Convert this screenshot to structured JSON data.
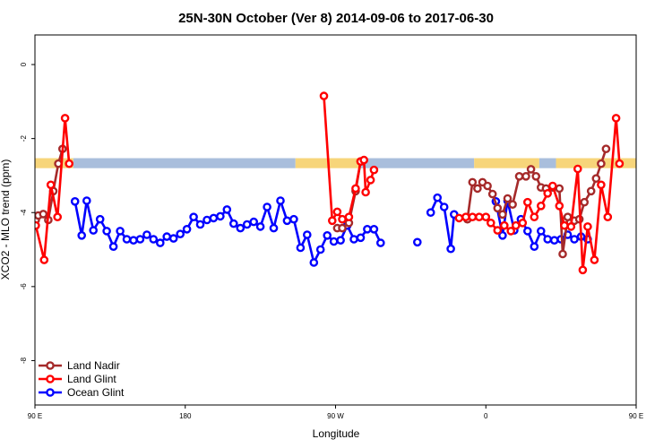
{
  "chart_data": {
    "type": "line",
    "title": "25N-30N October (Ver 8)   2014-09-06 to 2017-06-30",
    "xlabel": "Longitude",
    "ylabel": "XCO2 - MLO trend (ppm)",
    "xlim": [
      90,
      450
    ],
    "ylim": [
      -9.2,
      0.8
    ],
    "x_ticks": [
      {
        "value": 90,
        "label": "90 E"
      },
      {
        "value": 180,
        "label": "180"
      },
      {
        "value": 270,
        "label": "90 W"
      },
      {
        "value": 360,
        "label": "0"
      },
      {
        "value": 450,
        "label": "90 E"
      },
      {
        "value": 540,
        "label": "180"
      }
    ],
    "y_ticks": [
      {
        "value": 0,
        "label": "0"
      },
      {
        "value": -2,
        "label": "-2"
      },
      {
        "value": -4,
        "label": "-4"
      },
      {
        "value": -6,
        "label": "-6"
      },
      {
        "value": -8,
        "label": "-8"
      }
    ],
    "grid": false,
    "legend_position": "bottom-left",
    "band": {
      "y_top": -2.53,
      "y_bottom": -2.8,
      "land_color": "#f7d57a",
      "ocean_color": "#a9bedc",
      "segments": [
        {
          "x0": 90,
          "x1": 113,
          "kind": "land"
        },
        {
          "x0": 113,
          "x1": 246,
          "kind": "ocean"
        },
        {
          "x0": 246,
          "x1": 284,
          "kind": "land"
        },
        {
          "x0": 284,
          "x1": 353,
          "kind": "ocean"
        },
        {
          "x0": 353,
          "x1": 392,
          "kind": "land"
        },
        {
          "x0": 392,
          "x1": 402,
          "kind": "ocean"
        },
        {
          "x0": 402,
          "x1": 466,
          "kind": "land"
        },
        {
          "x0": 466,
          "x1": 630,
          "kind": "ocean"
        }
      ]
    },
    "series": [
      {
        "name": "Land Nadir",
        "color": "#a52a2a",
        "segments": [
          [
            [
              90.5,
              -4.2
            ],
            [
              92,
              -4.08
            ],
            [
              95,
              -4.04
            ],
            [
              98,
              -4.2
            ],
            [
              101,
              -3.42
            ],
            [
              104,
              -2.68
            ],
            [
              106.5,
              -2.28
            ]
          ],
          [
            [
              271,
              -4.42
            ],
            [
              274,
              -4.42
            ],
            [
              278,
              -4.28
            ],
            [
              282,
              -3.42
            ],
            [
              285,
              -2.62
            ]
          ],
          [
            [
              349,
              -4.18
            ],
            [
              352,
              -3.18
            ],
            [
              355,
              -3.35
            ],
            [
              358,
              -3.18
            ],
            [
              361,
              -3.28
            ],
            [
              364,
              -3.5
            ],
            [
              367,
              -3.88
            ],
            [
              370,
              -4.05
            ],
            [
              373,
              -3.62
            ],
            [
              376,
              -3.78
            ],
            [
              380,
              -3.02
            ],
            [
              384,
              -3.02
            ],
            [
              387,
              -2.83
            ],
            [
              390,
              -3.02
            ],
            [
              393,
              -3.32
            ],
            [
              396,
              -3.35
            ],
            [
              400,
              -3.32
            ],
            [
              404,
              -3.35
            ],
            [
              406,
              -5.12
            ],
            [
              409,
              -4.12
            ],
            [
              413,
              -4.22
            ],
            [
              416,
              -4.18
            ],
            [
              419,
              -3.72
            ],
            [
              423,
              -3.42
            ],
            [
              426,
              -3.08
            ],
            [
              429,
              -2.68
            ],
            [
              432,
              -2.28
            ]
          ]
        ]
      },
      {
        "name": "Land Glint",
        "color": "#ff0000",
        "segments": [
          [
            [
              90.5,
              -4.35
            ],
            [
              95.5,
              -5.28
            ],
            [
              99.5,
              -3.25
            ],
            [
              103.5,
              -4.12
            ],
            [
              108,
              -1.45
            ],
            [
              110.5,
              -2.68
            ]
          ],
          [
            [
              263,
              -0.85
            ],
            [
              268,
              -4.22
            ],
            [
              271,
              -3.98
            ],
            [
              274,
              -4.18
            ],
            [
              278,
              -4.12
            ],
            [
              282,
              -3.35
            ],
            [
              285,
              -2.62
            ],
            [
              287,
              -2.58
            ],
            [
              288,
              -3.45
            ],
            [
              291,
              -3.12
            ],
            [
              293,
              -2.85
            ]
          ],
          [
            [
              344,
              -4.15
            ],
            [
              348,
              -4.12
            ],
            [
              352,
              -4.12
            ],
            [
              356,
              -4.12
            ],
            [
              360,
              -4.12
            ],
            [
              363,
              -4.28
            ],
            [
              367,
              -4.48
            ],
            [
              371,
              -4.35
            ],
            [
              375,
              -4.5
            ],
            [
              378,
              -4.35
            ],
            [
              382,
              -4.28
            ],
            [
              385,
              -3.72
            ],
            [
              389,
              -4.12
            ],
            [
              393,
              -3.82
            ],
            [
              397,
              -3.48
            ],
            [
              400,
              -3.28
            ],
            [
              404,
              -3.82
            ],
            [
              407,
              -4.35
            ],
            [
              411,
              -4.38
            ],
            [
              415,
              -2.82
            ],
            [
              418,
              -5.55
            ],
            [
              421,
              -4.38
            ],
            [
              425,
              -5.28
            ],
            [
              429,
              -3.25
            ],
            [
              433,
              -4.12
            ],
            [
              438,
              -1.45
            ],
            [
              440,
              -2.68
            ]
          ]
        ]
      },
      {
        "name": "Ocean Glint",
        "color": "#0000ff",
        "segments": [
          [
            [
              114,
              -3.7
            ],
            [
              118,
              -4.62
            ],
            [
              121,
              -3.68
            ],
            [
              125,
              -4.48
            ],
            [
              129,
              -4.18
            ],
            [
              133,
              -4.5
            ],
            [
              137,
              -4.92
            ],
            [
              141,
              -4.5
            ],
            [
              145,
              -4.72
            ],
            [
              149,
              -4.75
            ],
            [
              153,
              -4.72
            ],
            [
              157,
              -4.6
            ],
            [
              161,
              -4.72
            ],
            [
              165,
              -4.82
            ],
            [
              169,
              -4.65
            ],
            [
              173,
              -4.7
            ],
            [
              177,
              -4.58
            ],
            [
              181,
              -4.45
            ],
            [
              185,
              -4.12
            ],
            [
              189,
              -4.32
            ],
            [
              193,
              -4.2
            ],
            [
              197,
              -4.15
            ],
            [
              201,
              -4.1
            ],
            [
              205,
              -3.92
            ],
            [
              209,
              -4.3
            ],
            [
              213,
              -4.42
            ],
            [
              217,
              -4.32
            ],
            [
              221,
              -4.25
            ],
            [
              225,
              -4.38
            ],
            [
              229,
              -3.85
            ],
            [
              233,
              -4.42
            ],
            [
              237,
              -3.68
            ],
            [
              241,
              -4.22
            ],
            [
              245,
              -4.18
            ],
            [
              249,
              -4.95
            ],
            [
              253,
              -4.6
            ],
            [
              257,
              -5.35
            ],
            [
              261,
              -5.0
            ],
            [
              265,
              -4.62
            ],
            [
              269,
              -4.78
            ],
            [
              273,
              -4.75
            ],
            [
              277,
              -4.35
            ],
            [
              281,
              -4.72
            ],
            [
              285,
              -4.68
            ],
            [
              289,
              -4.45
            ],
            [
              293,
              -4.45
            ],
            [
              297,
              -4.82
            ]
          ],
          [
            [
              319,
              -4.8
            ]
          ],
          [
            [
              327,
              -4.0
            ],
            [
              331,
              -3.6
            ],
            [
              335,
              -3.85
            ],
            [
              339,
              -4.98
            ],
            [
              341,
              -4.05
            ]
          ],
          [
            [
              366,
              -3.7
            ],
            [
              370,
              -4.62
            ],
            [
              373,
              -3.68
            ],
            [
              377,
              -4.48
            ],
            [
              381,
              -4.18
            ],
            [
              385,
              -4.5
            ],
            [
              389,
              -4.92
            ],
            [
              393,
              -4.5
            ],
            [
              397,
              -4.72
            ],
            [
              401,
              -4.75
            ],
            [
              405,
              -4.72
            ],
            [
              409,
              -4.6
            ],
            [
              413,
              -4.72
            ],
            [
              417,
              -4.65
            ],
            [
              421,
              -4.72
            ]
          ]
        ]
      }
    ]
  }
}
